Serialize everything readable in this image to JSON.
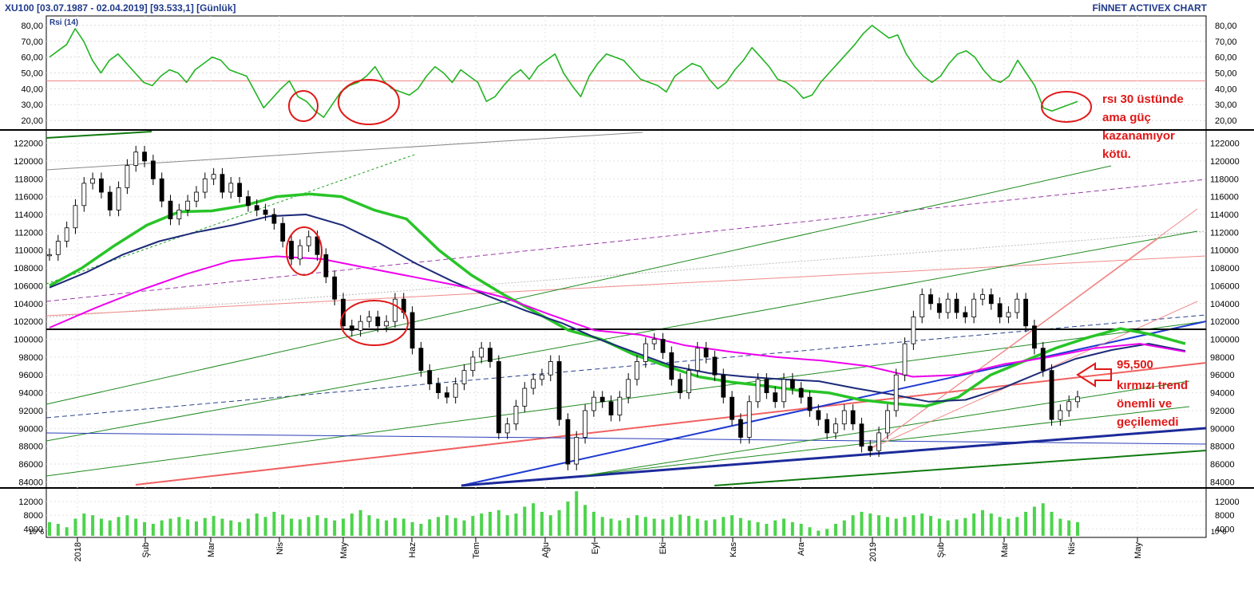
{
  "header": {
    "title": "XU100  [03.07.1987 - 02.04.2019]  [93.533,1]  [Günlük]",
    "brand": "FİNNET ACTIVEX CHART"
  },
  "rsi_label": "Rsi (14)",
  "volume_unit": "10^6",
  "annotations": {
    "rsi_note": [
      "rsı 30 üstünde",
      "ama güç",
      "kazanamıyor",
      "kötü."
    ],
    "trend_note": [
      "95,500",
      "kırmızı trend",
      "önemli ve",
      "geçilemedi"
    ]
  },
  "chart_data": {
    "type": "line",
    "x_ticks": [
      "2018",
      "Şub",
      "Mar",
      "Nis",
      "May",
      "Haz",
      "Tem",
      "Ağu",
      "Eyl",
      "Eki",
      "Kas",
      "Ara",
      "2019",
      "Şub",
      "Mar",
      "Nis",
      "May"
    ],
    "rsi": {
      "name": "Rsi (14)",
      "ylim": [
        15,
        85
      ],
      "ticks": [
        "20,00",
        "30,00",
        "40,00",
        "50,00",
        "60,00",
        "70,00",
        "80,00"
      ],
      "reference_level": 45,
      "values": [
        60,
        64,
        68,
        78,
        70,
        58,
        50,
        58,
        62,
        56,
        50,
        44,
        42,
        48,
        52,
        50,
        44,
        52,
        56,
        60,
        58,
        52,
        50,
        48,
        38,
        28,
        34,
        40,
        45,
        35,
        32,
        26,
        22,
        30,
        38,
        42,
        44,
        48,
        54,
        45,
        40,
        38,
        36,
        40,
        48,
        54,
        50,
        44,
        52,
        48,
        44,
        32,
        35,
        42,
        48,
        52,
        46,
        54,
        58,
        62,
        50,
        42,
        35,
        48,
        56,
        62,
        60,
        58,
        52,
        46,
        44,
        42,
        38,
        48,
        52,
        56,
        54,
        46,
        40,
        44,
        52,
        58,
        66,
        60,
        54,
        46,
        44,
        40,
        34,
        36,
        44,
        50,
        56,
        62,
        68,
        75,
        80,
        76,
        72,
        74,
        62,
        54,
        48,
        44,
        48,
        56,
        62,
        64,
        60,
        52,
        46,
        44,
        48,
        58,
        50,
        42,
        28,
        26,
        28,
        30,
        32
      ]
    },
    "price": {
      "ylim": [
        83500,
        123300
      ],
      "ticks": [
        "84000",
        "86000",
        "88000",
        "90000",
        "92000",
        "94000",
        "96000",
        "98000",
        "100000",
        "102000",
        "104000",
        "106000",
        "108000",
        "110000",
        "112000",
        "114000",
        "116000",
        "118000",
        "120000",
        "122000"
      ],
      "close": [
        109500,
        111000,
        112500,
        115000,
        117500,
        118000,
        116500,
        114500,
        117000,
        119500,
        121000,
        120000,
        118000,
        115500,
        113500,
        114500,
        115500,
        116500,
        118000,
        118500,
        116500,
        117500,
        116000,
        115000,
        114500,
        114000,
        113000,
        111000,
        109000,
        110500,
        111500,
        109500,
        107000,
        104500,
        101500,
        101000,
        102000,
        102500,
        101500,
        102000,
        104500,
        103000,
        99000,
        96500,
        95000,
        94000,
        93500,
        95000,
        96500,
        98000,
        99000,
        97500,
        89500,
        90500,
        92500,
        94500,
        95500,
        96000,
        97500,
        91000,
        86000,
        89000,
        92000,
        93500,
        93000,
        91500,
        93500,
        95500,
        97500,
        99500,
        100000,
        98500,
        95500,
        94000,
        96500,
        99000,
        98000,
        96000,
        93500,
        91000,
        89000,
        93000,
        95500,
        94000,
        93000,
        95500,
        94500,
        93500,
        92000,
        91000,
        89500,
        90500,
        92000,
        90500,
        88000,
        87500,
        89500,
        92000,
        96000,
        99500,
        102500,
        105000,
        104000,
        103000,
        104500,
        103000,
        102500,
        104500,
        105000,
        104000,
        102500,
        103000,
        104500,
        101500,
        99000,
        96500,
        91000,
        92000,
        93000,
        93533
      ]
    },
    "volume": {
      "ylim": [
        2000,
        15500
      ],
      "ticks": [
        "4000",
        "8000",
        "12000"
      ],
      "values": [
        6000,
        5500,
        4500,
        7000,
        8500,
        8000,
        7000,
        6500,
        7500,
        8000,
        7000,
        6000,
        5500,
        6500,
        7000,
        7500,
        6800,
        6200,
        7200,
        7800,
        7000,
        6500,
        6000,
        7000,
        8500,
        7500,
        9000,
        8200,
        7000,
        6800,
        7500,
        8000,
        7200,
        6500,
        7000,
        8500,
        9500,
        8000,
        7000,
        6500,
        7200,
        7000,
        6000,
        5500,
        6800,
        7500,
        8000,
        7200,
        6500,
        7800,
        8500,
        9000,
        9500,
        8000,
        8500,
        10500,
        11500,
        9000,
        8000,
        9500,
        12000,
        15000,
        11000,
        9000,
        7500,
        7000,
        6500,
        7200,
        8000,
        7500,
        7000,
        6800,
        7500,
        8200,
        7800,
        7000,
        6500,
        6800,
        7500,
        8000,
        7200,
        6500,
        6000,
        5500,
        6500,
        7000,
        6000,
        5500,
        4500,
        3500,
        4000,
        5500,
        6500,
        8000,
        9000,
        8500,
        8000,
        7500,
        7000,
        7500,
        8000,
        8500,
        7800,
        7000,
        6500,
        6800,
        7200,
        8500,
        9500,
        8500,
        7500,
        7000,
        7500,
        9000,
        10500,
        11500,
        9000,
        7000,
        6500,
        6000
      ]
    },
    "moving_averages": [
      {
        "color": "#28c428",
        "values": [
          106000,
          108000,
          110500,
          112800,
          114300,
          114400,
          115000,
          116000,
          116300,
          116000,
          114500,
          113500,
          110000,
          107200,
          105000,
          103000,
          101000,
          100000,
          98300,
          97000,
          95800,
          95200,
          94800,
          94300,
          94000,
          93200,
          92800,
          92500,
          93500,
          96000,
          97500,
          99000,
          100200,
          101200,
          100500,
          99500
        ]
      },
      {
        "color": "#1c2a78",
        "values": [
          105800,
          107500,
          109500,
          111000,
          112000,
          112800,
          113800,
          114000,
          112800,
          110800,
          108500,
          106500,
          104800,
          103200,
          101800,
          100000,
          98500,
          97000,
          96200,
          95800,
          95500,
          95300,
          94500,
          93800,
          93000,
          93200,
          94500,
          96200,
          97800,
          98800,
          99500,
          98700
        ]
      },
      {
        "color": "#ee00ee",
        "values": [
          101300,
          103500,
          105500,
          107300,
          108800,
          109300,
          109000,
          108000,
          107000,
          106000,
          104700,
          102800,
          101000,
          100500,
          99300,
          98600,
          98000,
          97600,
          97000,
          95800,
          96000,
          97200,
          98000,
          99000,
          99500,
          98600
        ]
      }
    ]
  }
}
